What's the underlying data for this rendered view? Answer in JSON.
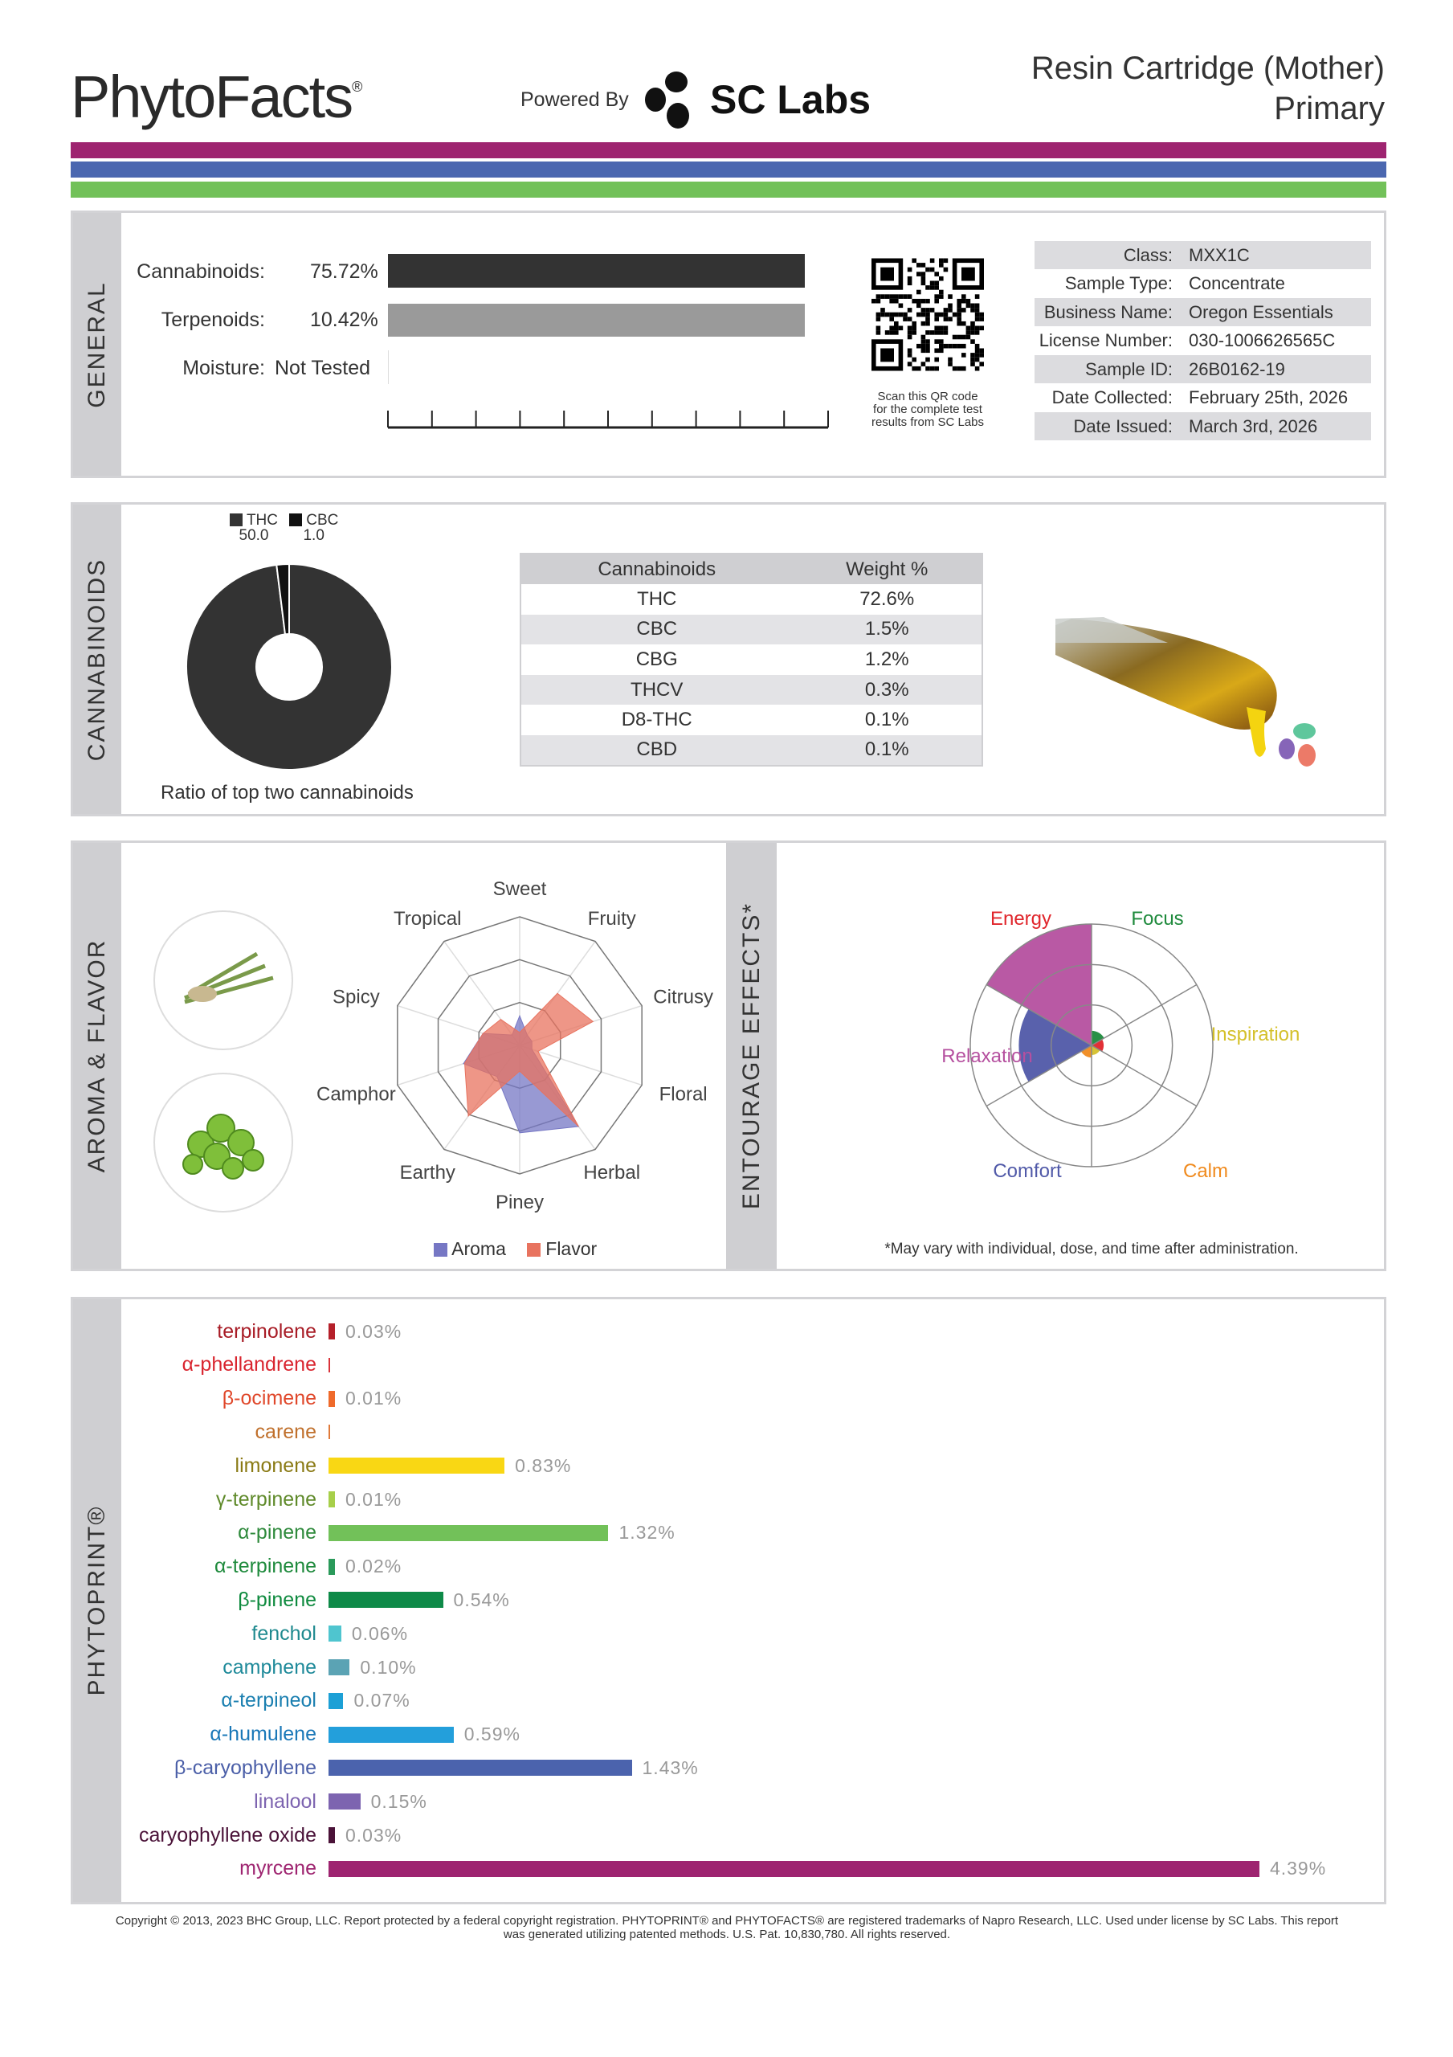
{
  "header": {
    "brand": "PhytoFacts",
    "registered": "®",
    "powered_by": "Powered By",
    "lab_logo": "SC Labs",
    "title_line1": "Resin Cartridge (Mother)",
    "title_line2": "Primary"
  },
  "stripes": [
    "#9e2470",
    "#4b67b0",
    "#72c159"
  ],
  "general": {
    "section": "GENERAL",
    "cannabinoids_label": "Cannabinoids:",
    "cannabinoids_value": "75.72%",
    "cannabinoids_pct": 75.72,
    "terpenoids_label": "Terpenoids:",
    "terpenoids_value": "10.42%",
    "terpenoids_pct": 10.42,
    "moisture_label": "Moisture:",
    "moisture_value": "Not Tested",
    "qr_caption": [
      "Scan this QR code",
      "for the complete test",
      "results from SC Labs"
    ],
    "info": [
      {
        "k": "Class:",
        "v": "MXX1C"
      },
      {
        "k": "Sample Type:",
        "v": "Concentrate"
      },
      {
        "k": "Business Name:",
        "v": "Oregon Essentials"
      },
      {
        "k": "License Number:",
        "v": "030-1006626565C"
      },
      {
        "k": "Sample ID:",
        "v": "26B0162-19"
      },
      {
        "k": "Date Collected:",
        "v": "February 25th, 2026"
      },
      {
        "k": "Date Issued:",
        "v": "March 3rd, 2026"
      }
    ]
  },
  "cannabinoids": {
    "section": "CANNABINOIDS",
    "donut": {
      "legend": [
        {
          "name": "THC",
          "value": "50.0"
        },
        {
          "name": "CBC",
          "value": "1.0"
        }
      ],
      "values": [
        50.0,
        1.0
      ],
      "caption": "Ratio of top two cannabinoids"
    },
    "table": {
      "headers": [
        "Cannabinoids",
        "Weight %"
      ],
      "rows": [
        [
          "THC",
          "72.6%"
        ],
        [
          "CBC",
          "1.5%"
        ],
        [
          "CBG",
          "1.2%"
        ],
        [
          "THCV",
          "0.3%"
        ],
        [
          "D8-THC",
          "0.1%"
        ],
        [
          "CBD",
          "0.1%"
        ]
      ]
    }
  },
  "aroma": {
    "section": "AROMA & FLAVOR",
    "chart_data": {
      "type": "radar",
      "axes": [
        "Sweet",
        "Fruity",
        "Citrusy",
        "Floral",
        "Herbal",
        "Piney",
        "Earthy",
        "Camphor",
        "Spicy",
        "Tropical"
      ],
      "range": [
        0,
        1
      ],
      "series": [
        {
          "name": "Aroma",
          "color": "#7677c4",
          "values": [
            0.23,
            0.1,
            0.1,
            0.1,
            0.78,
            0.68,
            0.3,
            0.46,
            0.3,
            0.1
          ]
        },
        {
          "name": "Flavor",
          "color": "#e8735f",
          "values": [
            0.1,
            0.5,
            0.6,
            0.15,
            0.78,
            0.2,
            0.68,
            0.45,
            0.3,
            0.25
          ]
        }
      ]
    }
  },
  "effects": {
    "section": "ENTOURAGE EFFECTS*",
    "chart_data": {
      "type": "polar-area",
      "range": [
        0,
        1
      ],
      "categories": [
        {
          "name": "Focus",
          "value": 0.12,
          "color": "#1e8a3c"
        },
        {
          "name": "Energy",
          "value": 0.1,
          "color": "#e0252b"
        },
        {
          "name": "Inspiration",
          "value": 0.08,
          "color": "#d4c02a"
        },
        {
          "name": "Calm",
          "value": 0.1,
          "color": "#f08a1d"
        },
        {
          "name": "Comfort",
          "value": 0.6,
          "color": "#5059a8"
        },
        {
          "name": "Relaxation",
          "value": 1.0,
          "color": "#b5509f"
        }
      ]
    },
    "footnote": "*May vary with individual, dose, and time after administration."
  },
  "phytoprint": {
    "section": "PHYTOPRINT®",
    "chart_data": {
      "type": "bar",
      "orientation": "horizontal",
      "unit": "%",
      "items": [
        {
          "name": "terpinolene",
          "value": 0.03,
          "label": "0.03%",
          "color": "#b5202a",
          "text": "#a81c26"
        },
        {
          "name": "α-phellandrene",
          "value": 0,
          "label": "",
          "color": "#d9333a",
          "text": "#d9252f"
        },
        {
          "name": "β-ocimene",
          "value": 0.01,
          "label": "0.01%",
          "color": "#ef6a2b",
          "text": "#e0482b"
        },
        {
          "name": "carene",
          "value": 0,
          "label": "",
          "color": "#e07a3a",
          "text": "#c0702c"
        },
        {
          "name": "limonene",
          "value": 0.83,
          "label": "0.83%",
          "color": "#f9d714",
          "text": "#8a7a14"
        },
        {
          "name": "γ-terpinene",
          "value": 0.01,
          "label": "0.01%",
          "color": "#a7cf4a",
          "text": "#5f8a2a"
        },
        {
          "name": "α-pinene",
          "value": 1.32,
          "label": "1.32%",
          "color": "#72c159",
          "text": "#2f8a3c"
        },
        {
          "name": "α-terpinene",
          "value": 0.02,
          "label": "0.02%",
          "color": "#2a9a5a",
          "text": "#1e8a3c"
        },
        {
          "name": "β-pinene",
          "value": 0.54,
          "label": "0.54%",
          "color": "#0e8a48",
          "text": "#0e8a3e"
        },
        {
          "name": "fenchol",
          "value": 0.06,
          "label": "0.06%",
          "color": "#4fc5cf",
          "text": "#1f8a8f"
        },
        {
          "name": "camphene",
          "value": 0.1,
          "label": "0.10%",
          "color": "#5ba3b4",
          "text": "#1f8a9a"
        },
        {
          "name": "α-terpineol",
          "value": 0.07,
          "label": "0.07%",
          "color": "#1ca0d6",
          "text": "#1a7fb0"
        },
        {
          "name": "α-humulene",
          "value": 0.59,
          "label": "0.59%",
          "color": "#239fdb",
          "text": "#1a78b8"
        },
        {
          "name": "β-caryophyllene",
          "value": 1.43,
          "label": "1.43%",
          "color": "#4b63ad",
          "text": "#4b5fa8"
        },
        {
          "name": "linalool",
          "value": 0.15,
          "label": "0.15%",
          "color": "#7d64b0",
          "text": "#7d64b0"
        },
        {
          "name": "caryophyllene oxide",
          "value": 0.03,
          "label": "0.03%",
          "color": "#4a1238",
          "text": "#4a1238"
        },
        {
          "name": "myrcene",
          "value": 4.39,
          "label": "4.39%",
          "color": "#9e2470",
          "text": "#9e2470"
        }
      ]
    }
  },
  "footer": {
    "line1": "Copyright © 2013, 2023 BHC Group, LLC. Report protected by a federal copyright registration. PHYTOPRINT® and PHYTOFACTS® are registered trademarks of Napro Research, LLC. Used under license by SC Labs. This report",
    "line2": "was generated utilizing patented methods. U.S. Pat. 10,830,780. All rights reserved."
  }
}
